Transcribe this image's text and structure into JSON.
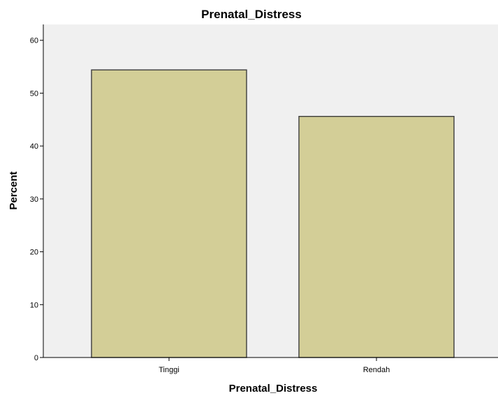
{
  "colors": {
    "plot_background": "#f0f0f0",
    "bar_fill": "#d3ce97",
    "bar_stroke": "#3c3c3c",
    "axis": "#000000"
  },
  "chart_data": {
    "type": "bar",
    "title": "Prenatal_Distress",
    "xlabel": "Prenatal_Distress",
    "ylabel": "Percent",
    "categories": [
      "Tinggi",
      "Rendah"
    ],
    "values": [
      54.4,
      45.6
    ],
    "ylim": [
      0,
      63
    ],
    "yticks": [
      0,
      10,
      20,
      30,
      40,
      50,
      60
    ],
    "grid": false,
    "legend": "none"
  }
}
